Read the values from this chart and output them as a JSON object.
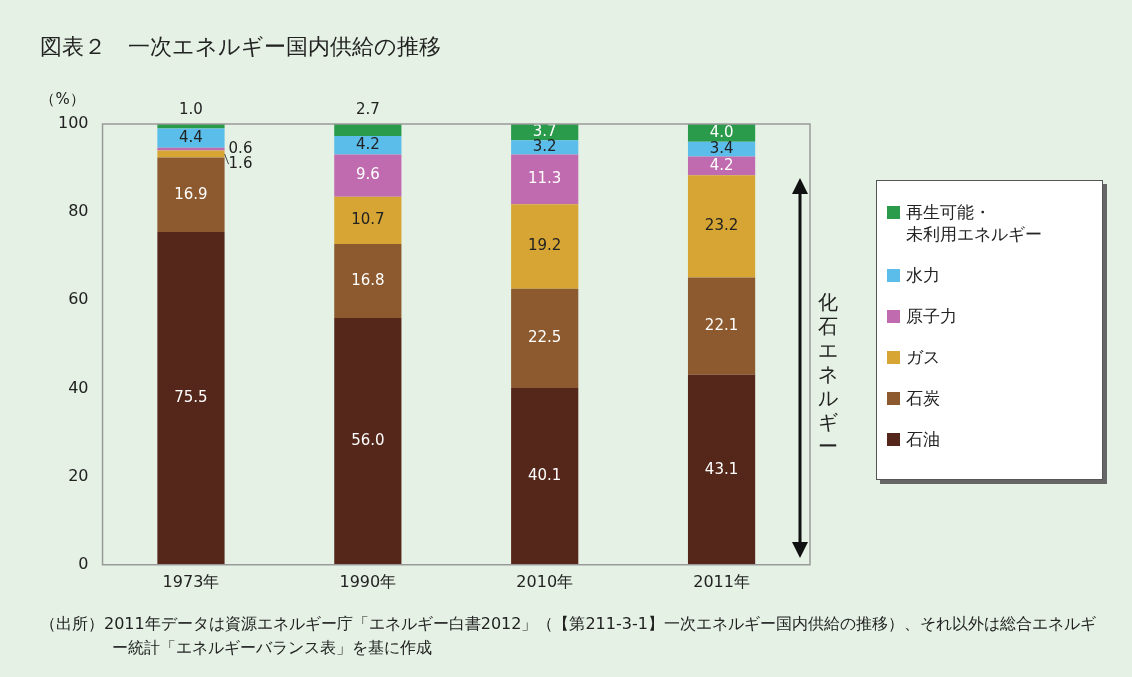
{
  "chart_data": {
    "type": "bar",
    "title": "図表２　一次エネルギー国内供給の推移",
    "ylabel": "（%）",
    "categories": [
      "1973年",
      "1990年",
      "2010年",
      "2011年"
    ],
    "stacked": true,
    "legend": "right",
    "grid": false,
    "ylim": [
      0,
      100
    ],
    "yticks": [
      0,
      20,
      40,
      60,
      80,
      100
    ],
    "series": [
      {
        "name": "石油",
        "color": "#55271a",
        "values": [
          75.5,
          56.0,
          40.1,
          43.1
        ],
        "value_labels": [
          "75.5",
          "56.0",
          "40.1",
          "43.1"
        ]
      },
      {
        "name": "石炭",
        "color": "#8c5a2e",
        "values": [
          16.9,
          16.8,
          22.5,
          22.1
        ],
        "value_labels": [
          "16.9",
          "16.8",
          "22.5",
          "22.1"
        ]
      },
      {
        "name": "ガス",
        "color": "#d6a534",
        "values": [
          1.6,
          10.7,
          19.2,
          23.2
        ],
        "value_labels": [
          "1.6",
          "10.7",
          "19.2",
          "23.2"
        ]
      },
      {
        "name": "原子力",
        "color": "#c06aaf",
        "values": [
          0.6,
          9.6,
          11.3,
          4.2
        ],
        "value_labels": [
          "0.6",
          "9.6",
          "11.3",
          "4.2"
        ]
      },
      {
        "name": "水力",
        "color": "#5bbde9",
        "values": [
          4.4,
          4.2,
          3.2,
          3.4
        ],
        "value_labels": [
          "4.4",
          "4.2",
          "3.2",
          "3.4"
        ]
      },
      {
        "name": "再生可能・未利用エネルギー",
        "color": "#2a9a4b",
        "values": [
          1.0,
          2.7,
          3.7,
          4.0
        ],
        "value_labels": [
          "1.0",
          "2.7",
          "3.7",
          "4.0"
        ]
      }
    ],
    "annotations": [
      "化石エネルギー",
      "（出所）2011年データは資源エネルギー庁「エネルギー白書2012」（【第211-3-1】一次エネルギー国内供給の推移）、それ以外は総合エネルギー統計「エネルギーバランス表」を基に作成"
    ]
  }
}
